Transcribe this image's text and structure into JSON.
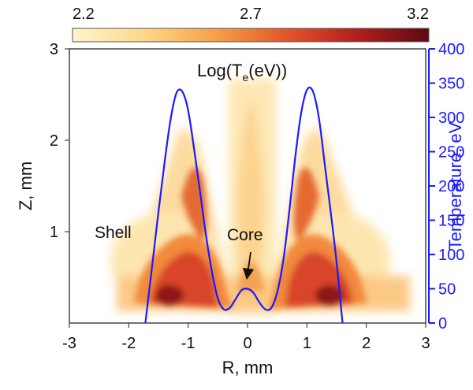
{
  "chart_data": {
    "type": "heatmap",
    "title": "",
    "map_label": {
      "prefix": "Log(T",
      "sub": "e",
      "suffix": "(eV))"
    },
    "colorbar": {
      "ticks": [
        "2.2",
        "2.7",
        "3.2"
      ],
      "range": [
        2.2,
        3.2
      ],
      "colors": [
        "#fff4cc",
        "#fdd98a",
        "#f6a04a",
        "#e2562a",
        "#b11e1e",
        "#5b0a12"
      ]
    },
    "xlabel": "R, mm",
    "ylabel": "Z, mm",
    "y2label": "Temperature, eV",
    "xlim": [
      -3,
      3
    ],
    "ylim": [
      0,
      3
    ],
    "y2lim": [
      0,
      400
    ],
    "xticks": [
      "-3",
      "-2",
      "-1",
      "0",
      "1",
      "2",
      "3"
    ],
    "yticks": [
      "1",
      "2",
      "3"
    ],
    "y2ticks": [
      "0",
      "50",
      "100",
      "150",
      "200",
      "250",
      "300",
      "350",
      "400"
    ],
    "annotations": [
      {
        "text": "Shell"
      },
      {
        "text": "Core"
      }
    ],
    "series": [
      {
        "axis": "right",
        "color": "#1a1aff",
        "x": [
          -1.72,
          -1.6,
          -1.5,
          -1.4,
          -1.3,
          -1.2,
          -1.1,
          -1.0,
          -0.9,
          -0.8,
          -0.7,
          -0.6,
          -0.5,
          -0.4,
          -0.3,
          -0.2,
          -0.1,
          0.0,
          0.1,
          0.2,
          0.3,
          0.4,
          0.5,
          0.6,
          0.7,
          0.8,
          0.9,
          1.0,
          1.1,
          1.2,
          1.3,
          1.4,
          1.5,
          1.6
        ],
        "y": [
          0,
          88,
          162,
          232,
          295,
          335,
          338,
          310,
          254,
          192,
          128,
          75,
          36,
          20,
          22,
          35,
          48,
          50,
          44,
          30,
          20,
          22,
          45,
          90,
          160,
          240,
          305,
          340,
          338,
          300,
          232,
          162,
          88,
          0
        ]
      }
    ]
  }
}
